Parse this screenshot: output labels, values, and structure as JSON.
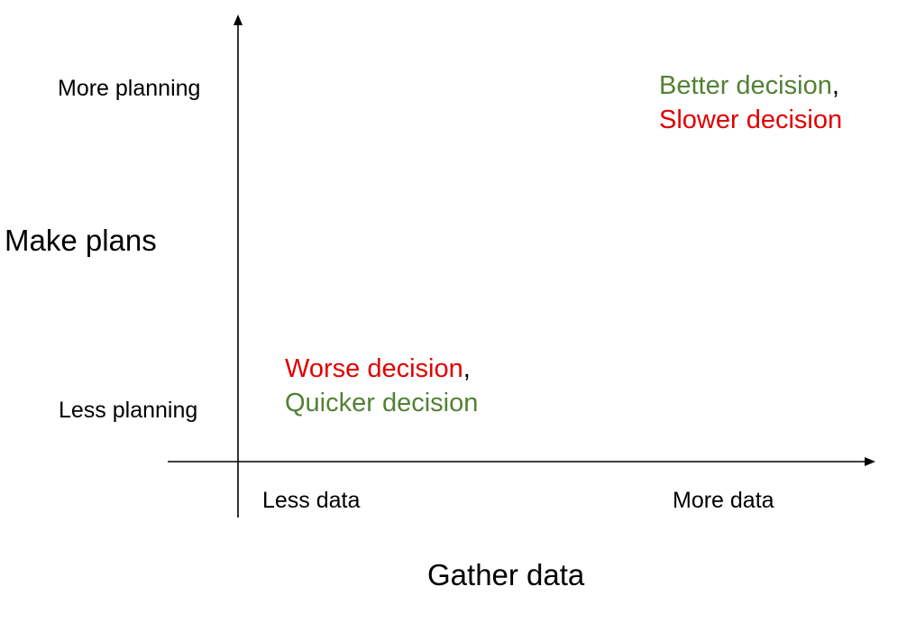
{
  "colors": {
    "good": "#538135",
    "bad": "#e00000",
    "axis": "#000000"
  },
  "y_axis": {
    "title": "Make plans",
    "high_label": "More planning",
    "low_label": "Less planning"
  },
  "x_axis": {
    "title": "Gather data",
    "low_label": "Less data",
    "high_label": "More data"
  },
  "quadrants": {
    "top_right": {
      "line1": "Better decision",
      "line1_tone": "good",
      "line2": "Slower decision",
      "line2_tone": "bad"
    },
    "bottom_left": {
      "line1": "Worse decision",
      "line1_tone": "bad",
      "line2": "Quicker decision",
      "line2_tone": "good"
    },
    "separator": ","
  }
}
